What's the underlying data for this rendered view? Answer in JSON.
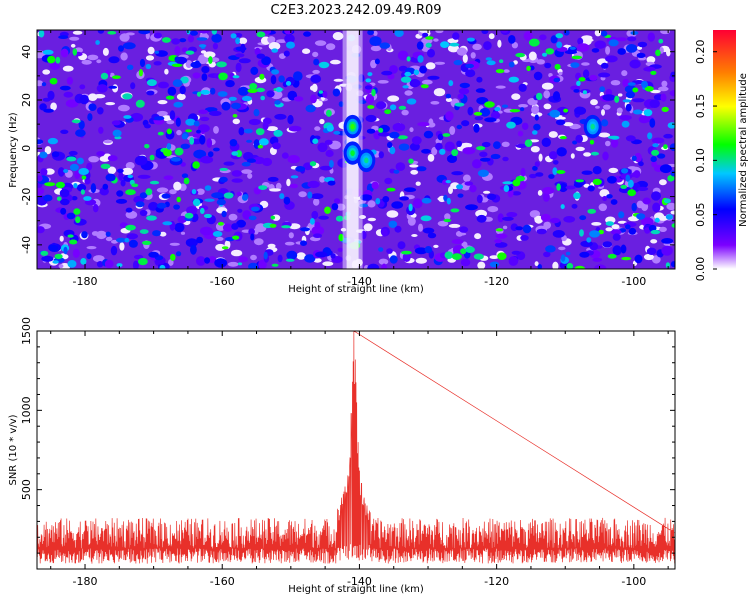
{
  "title": "C2E3.2023.242.09.49.R09",
  "chart_data": [
    {
      "type": "heatmap",
      "xlabel": "Height of straight line (km)",
      "ylabel": "Frequency (Hz)",
      "xlim": [
        -187,
        -94
      ],
      "ylim": [
        -50,
        49
      ],
      "xticks": [
        -180,
        -160,
        -140,
        -120,
        -100
      ],
      "yticks": [
        -40,
        -20,
        0,
        20,
        40
      ],
      "z_range": [
        0.0,
        0.22
      ],
      "colorbar": {
        "label": "Normalized spectral amplitude",
        "ticks": [
          "0.00",
          "0.05",
          "0.10",
          "0.15",
          "0.20"
        ],
        "colors": [
          "#ffffff",
          "#7b00ff",
          "#0000ff",
          "#00c8ff",
          "#00ff00",
          "#ffff00",
          "#ff8000",
          "#ff0033"
        ]
      },
      "background_level": 0.06,
      "features": [
        {
          "kind": "vertical_null_band",
          "x": -141,
          "level": 0.0
        },
        {
          "kind": "peak",
          "x": -141,
          "y": 9,
          "value": 0.12
        },
        {
          "kind": "peak",
          "x": -141,
          "y": -2,
          "value": 0.11
        },
        {
          "kind": "peak",
          "x": -139,
          "y": -5,
          "value": 0.1
        },
        {
          "kind": "peak",
          "x": -106,
          "y": 9,
          "value": 0.1
        }
      ]
    },
    {
      "type": "line",
      "xlabel": "Height of straight line (km)",
      "ylabel": "SNR (10 * v/v)",
      "xlim": [
        -187,
        -94
      ],
      "ylim": [
        0,
        1500
      ],
      "xticks": [
        -180,
        -160,
        -140,
        -120,
        -100
      ],
      "yticks": [
        500,
        1000,
        1500
      ],
      "series": [
        {
          "color": "#e8302a",
          "baseline": 130,
          "noise_amplitude": 120,
          "peak": {
            "x": -140.8,
            "value": 1500
          },
          "peak_x": [
            -143.2,
            -142.6,
            -142.1,
            -141.7,
            -141.4,
            -141.2,
            -141.0,
            -140.8,
            -140.6,
            -140.4,
            -140.2,
            -140.0,
            -139.7,
            -139.3,
            -138.9,
            -138.4
          ],
          "peak_values": [
            380,
            450,
            520,
            590,
            700,
            980,
            1180,
            1500,
            1320,
            1050,
            800,
            620,
            540,
            450,
            400,
            360
          ]
        }
      ]
    }
  ]
}
